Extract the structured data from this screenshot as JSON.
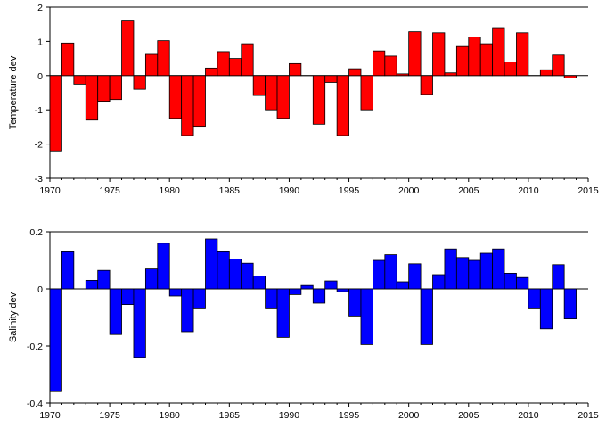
{
  "chart_data": [
    {
      "type": "bar",
      "title": "",
      "xlabel": "",
      "ylabel": "Temperature dev",
      "x": [
        1971,
        1972,
        1973,
        1974,
        1975,
        1976,
        1977,
        1978,
        1979,
        1980,
        1981,
        1982,
        1983,
        1984,
        1985,
        1986,
        1987,
        1988,
        1989,
        1990,
        1991,
        1992,
        1993,
        1994,
        1995,
        1996,
        1997,
        1998,
        1999,
        2000,
        2001,
        2002,
        2003,
        2004,
        2005,
        2006,
        2007,
        2008,
        2009,
        2010,
        2011,
        2012,
        2013,
        2014
      ],
      "values": [
        -2.2,
        0.95,
        -0.25,
        -1.3,
        -0.75,
        -0.7,
        1.62,
        -0.4,
        0.62,
        1.02,
        -1.25,
        -1.75,
        -1.48,
        0.22,
        0.7,
        0.5,
        0.93,
        -0.58,
        -1.0,
        -1.25,
        0.35,
        0.0,
        -1.42,
        -0.2,
        -1.75,
        0.2,
        -1.0,
        0.72,
        0.57,
        0.05,
        1.28,
        -0.55,
        1.25,
        0.08,
        0.85,
        1.13,
        0.93,
        1.4,
        0.4,
        1.25,
        0.0,
        0.17,
        0.6,
        -0.07
      ],
      "xlim": [
        1970,
        2015
      ],
      "ylim": [
        -3,
        2
      ],
      "xticks": [
        "1970",
        "1975",
        "1980",
        "1985",
        "1990",
        "1995",
        "2000",
        "2005",
        "2010",
        "2015"
      ],
      "yticks": [
        "2",
        "1",
        "0",
        "-1",
        "-2",
        "-3"
      ],
      "color": "#ff0000",
      "grid": false
    },
    {
      "type": "bar",
      "title": "",
      "xlabel": "",
      "ylabel": "Salinity dev",
      "x": [
        1971,
        1972,
        1973,
        1974,
        1975,
        1976,
        1977,
        1978,
        1979,
        1980,
        1981,
        1982,
        1983,
        1984,
        1985,
        1986,
        1987,
        1988,
        1989,
        1990,
        1991,
        1992,
        1993,
        1994,
        1995,
        1996,
        1997,
        1998,
        1999,
        2000,
        2001,
        2002,
        2003,
        2004,
        2005,
        2006,
        2007,
        2008,
        2009,
        2010,
        2011,
        2012,
        2013,
        2014
      ],
      "values": [
        -0.36,
        0.13,
        0.0,
        0.03,
        0.065,
        -0.16,
        -0.055,
        -0.24,
        0.07,
        0.16,
        -0.025,
        -0.15,
        -0.07,
        0.175,
        0.13,
        0.105,
        0.09,
        0.045,
        -0.07,
        -0.17,
        -0.02,
        0.012,
        -0.05,
        0.028,
        -0.01,
        -0.095,
        -0.195,
        0.1,
        0.12,
        0.025,
        0.088,
        -0.195,
        0.05,
        0.14,
        0.11,
        0.1,
        0.125,
        0.14,
        0.055,
        0.04,
        -0.07,
        -0.14,
        0.085,
        -0.105
      ],
      "xlim": [
        1970,
        2015
      ],
      "ylim": [
        -0.4,
        0.2
      ],
      "xticks": [
        "1970",
        "1975",
        "1980",
        "1985",
        "1990",
        "1995",
        "2000",
        "2005",
        "2010",
        "2015"
      ],
      "yticks": [
        "0.2",
        "0",
        "-0.2",
        "-0.4"
      ],
      "color": "#0000ff",
      "grid": false
    }
  ]
}
